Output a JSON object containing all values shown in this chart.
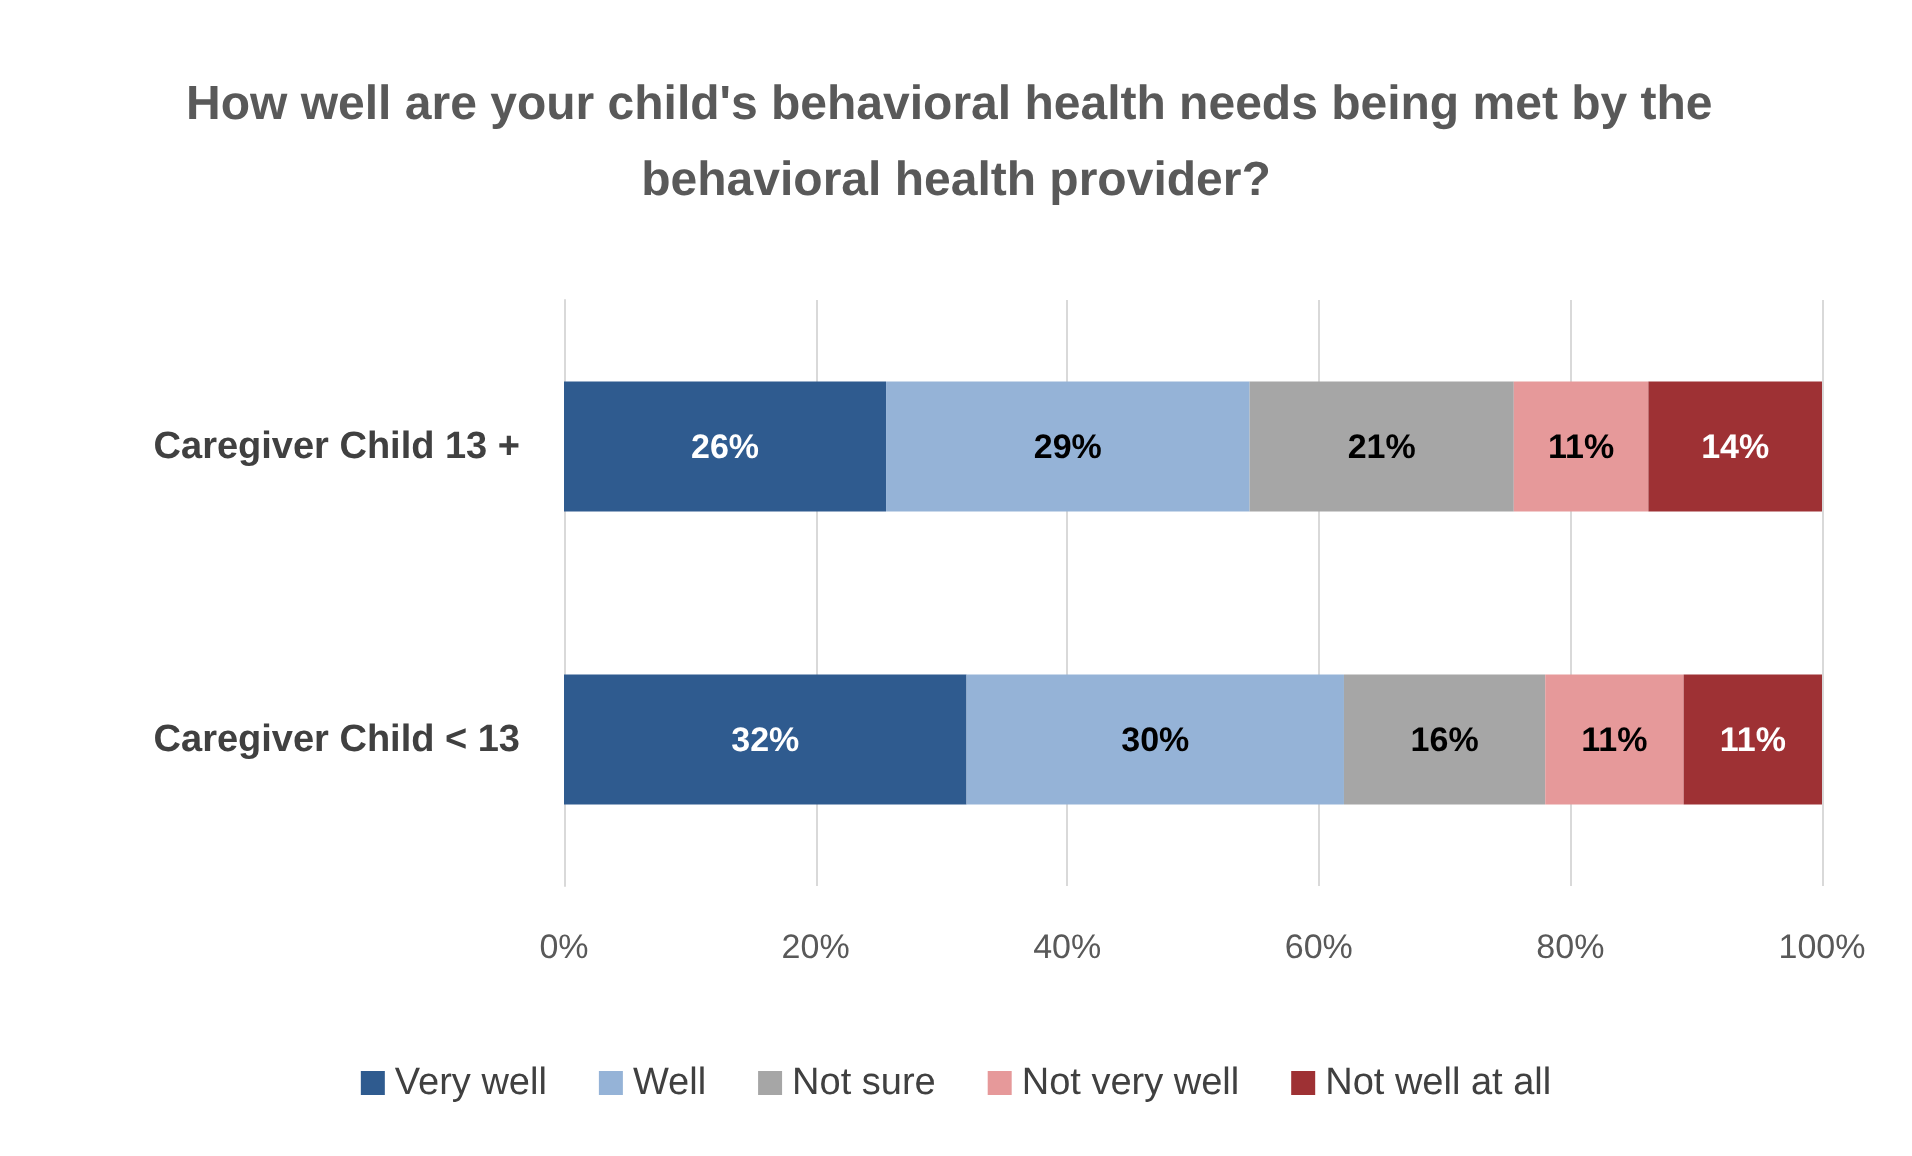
{
  "chart_data": {
    "type": "bar",
    "orientation": "horizontal",
    "stacked": true,
    "title": "How well are your child's behavioral health needs being met by the behavioral health provider?",
    "categories": [
      "Caregiver Child 13 +",
      "Caregiver Child < 13"
    ],
    "series": [
      {
        "name": "Very well",
        "color": "#2f5b8f",
        "values": [
          25.6,
          32
        ],
        "value_labels": [
          "26%",
          "32%"
        ]
      },
      {
        "name": "Well",
        "color": "#95b3d7",
        "values": [
          28.9,
          30
        ],
        "value_labels": [
          "29%",
          "30%"
        ]
      },
      {
        "name": "Not sure",
        "color": "#a6a6a6",
        "values": [
          21.0,
          16
        ],
        "value_labels": [
          "21%",
          "16%"
        ]
      },
      {
        "name": "Not very well",
        "color": "#e6999a",
        "values": [
          10.7,
          11
        ],
        "value_labels": [
          "11%",
          "11%"
        ]
      },
      {
        "name": "Not well at all",
        "color": "#9e3134",
        "values": [
          13.8,
          11
        ],
        "value_labels": [
          "14%",
          "11%"
        ]
      }
    ],
    "xlim": [
      0,
      100
    ],
    "xticks": [
      {
        "value": 0,
        "label": "0%"
      },
      {
        "value": 20,
        "label": "20%"
      },
      {
        "value": 40,
        "label": "40%"
      },
      {
        "value": 60,
        "label": "60%"
      },
      {
        "value": 80,
        "label": "80%"
      },
      {
        "value": 100,
        "label": "100%"
      }
    ],
    "grid": "x",
    "legend": "bottom"
  }
}
